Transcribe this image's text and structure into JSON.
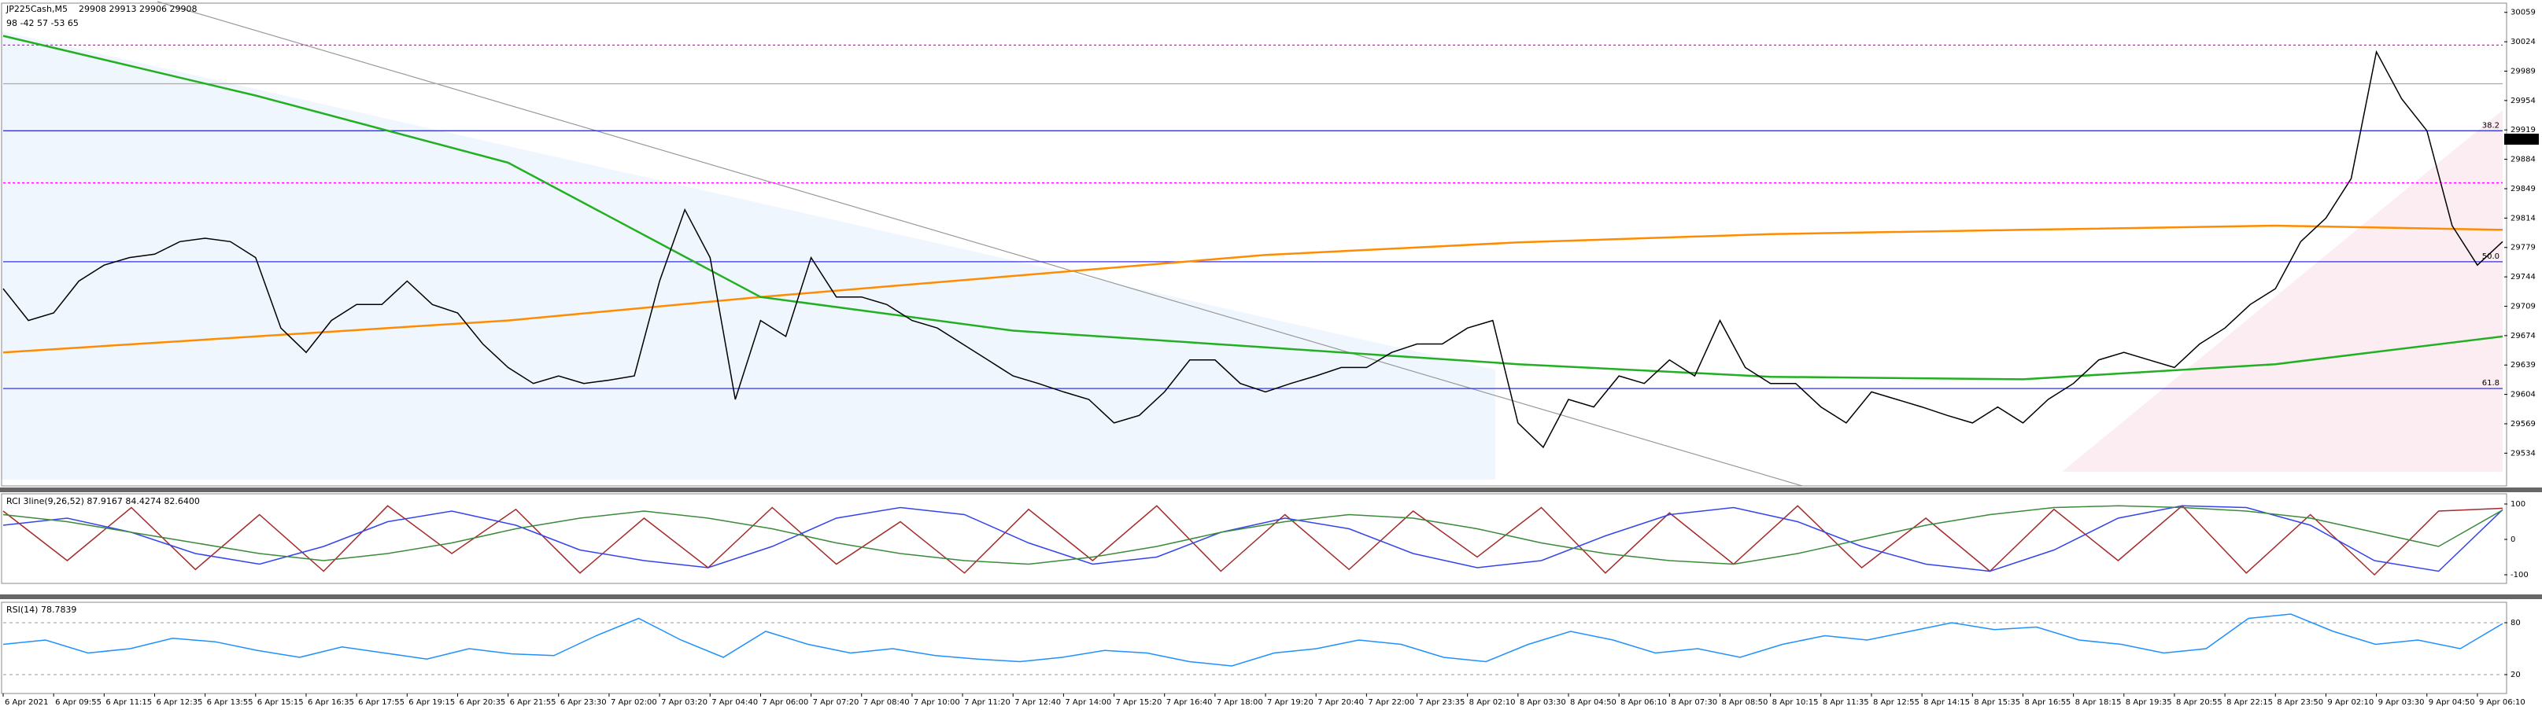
{
  "chart_data": [
    {
      "type": "line",
      "title": "JP225Cash,M5",
      "subtitle": "29908 29913 29906 29908",
      "annotations": [
        "98 -42 57 -53 65"
      ],
      "categories": [
        "6 Apr 2021",
        null,
        "6 Apr 09:55",
        null,
        "6 Apr 11:15",
        null,
        "6 Apr 12:35",
        null,
        "6 Apr 13:55",
        null,
        "6 Apr 15:15",
        null,
        "6 Apr 16:35",
        null,
        "6 Apr 17:55",
        null,
        "6 Apr 19:15",
        null,
        "6 Apr 20:35",
        null,
        "6 Apr 21:55",
        null,
        "6 Apr 23:30",
        null,
        "7 Apr 02:00",
        null,
        "7 Apr 03:20",
        null,
        "7 Apr 04:40",
        null,
        "7 Apr 06:00",
        null,
        "7 Apr 07:20",
        null,
        "7 Apr 08:40",
        null,
        "7 Apr 10:00",
        null,
        "7 Apr 11:20",
        null,
        "7 Apr 12:40",
        null,
        "7 Apr 14:00",
        null,
        "7 Apr 15:20",
        null,
        "7 Apr 16:40",
        null,
        "7 Apr 18:00",
        null,
        "7 Apr 19:20",
        null,
        "7 Apr 20:40",
        null,
        "7 Apr 22:00",
        null,
        "7 Apr 23:35",
        null,
        "8 Apr 02:10",
        null,
        "8 Apr 03:30",
        null,
        "8 Apr 04:50",
        null,
        "8 Apr 06:10",
        null,
        "8 Apr 07:30",
        null,
        "8 Apr 08:50",
        null,
        "8 Apr 10:15",
        null,
        "8 Apr 11:35",
        null,
        "8 Apr 12:55",
        null,
        "8 Apr 14:15",
        null,
        "8 Apr 15:35",
        null,
        "8 Apr 16:55",
        null,
        "8 Apr 18:15",
        null,
        "8 Apr 19:35",
        null,
        "8 Apr 20:55",
        null,
        "8 Apr 22:15",
        null,
        "8 Apr 23:50",
        null,
        "9 Apr 02:10",
        null,
        "9 Apr 03:30",
        null,
        "9 Apr 04:50",
        null,
        "9 Apr 06:10",
        null
      ],
      "series": [
        {
          "color": "#000000",
          "values": [
            29730,
            29692,
            29701,
            29739,
            29758,
            29767,
            29771,
            29786,
            29790,
            29786,
            29767,
            29683,
            29654,
            29692,
            29711,
            29711,
            29739,
            29711,
            29701,
            29664,
            29636,
            29617,
            29626,
            29617,
            29621,
            29626,
            29739,
            29824,
            29767,
            29598,
            29692,
            29673,
            29767,
            29720,
            29720,
            29711,
            29692,
            29683,
            29664,
            29645,
            29626,
            29617,
            29607,
            29598,
            29570,
            29579,
            29607,
            29645,
            29645,
            29617,
            29607,
            29617,
            29626,
            29636,
            29636,
            29654,
            29664,
            29664,
            29683,
            29692,
            29570,
            29541,
            29598,
            29589,
            29626,
            29617,
            29645,
            29626,
            29692,
            29636,
            29617,
            29617,
            29589,
            29570,
            29607,
            29598,
            29589,
            29579,
            29570,
            29589,
            29570,
            29598,
            29617,
            29645,
            29654,
            29645,
            29636,
            29664,
            29683,
            29711,
            29730,
            29786,
            29814,
            29861,
            30012,
            29956,
            29918,
            29805,
            29758,
            29786
          ]
        }
      ],
      "overlays": [
        {
          "color": "#ff8c00",
          "x": [
            0,
            10,
            20,
            30,
            40,
            50,
            60,
            70,
            80,
            90,
            99
          ],
          "values": [
            29654,
            29673,
            29692,
            29720,
            29745,
            29770,
            29785,
            29795,
            29800,
            29805,
            29800
          ]
        },
        {
          "color": "#22b022",
          "x": [
            0,
            10,
            20,
            30,
            40,
            50,
            60,
            70,
            80,
            90,
            99
          ],
          "values": [
            30031,
            29960,
            29880,
            29720,
            29680,
            29660,
            29640,
            29625,
            29622,
            29640,
            29673
          ]
        }
      ],
      "levels": [
        {
          "value": 30020,
          "color": "#ff00ff",
          "dash": true
        },
        {
          "value": 29974,
          "color": "#aaaaaa",
          "dash": false
        },
        {
          "value": 29918,
          "color": "#3333dd",
          "dash": false,
          "label": "38.2"
        },
        {
          "value": 29856,
          "color": "#ff00ff",
          "dash": true
        },
        {
          "value": 29762,
          "color": "#3333dd",
          "dash": false,
          "label": "50.0"
        },
        {
          "value": 29611,
          "color": "#3333dd",
          "dash": false,
          "label": "61.8"
        }
      ],
      "last_price": 29908,
      "ylim": [
        29495,
        30070
      ],
      "yticks": [
        29534,
        29569,
        29604,
        29639,
        29674,
        29709,
        29744,
        29779,
        29814,
        29849,
        29884,
        29919,
        29954,
        29989,
        30024,
        30059
      ]
    },
    {
      "type": "line",
      "title": "RCI 3line(9,26,52) 87.9167 84.4274 82.6400",
      "series": [
        {
          "color": "#a52a2a",
          "values": [
            80,
            -60,
            90,
            -85,
            70,
            -90,
            95,
            -40,
            85,
            -95,
            60,
            -80,
            90,
            -70,
            50,
            -95,
            85,
            -60,
            95,
            -90,
            70,
            -85,
            80,
            -50,
            90,
            -95,
            75,
            -70,
            95,
            -80,
            60,
            -90,
            85,
            -60,
            95,
            -95,
            70,
            -100,
            80,
            88
          ]
        },
        {
          "color": "#3344ee",
          "values": [
            40,
            60,
            20,
            -40,
            -70,
            -20,
            50,
            80,
            40,
            -30,
            -60,
            -80,
            -20,
            60,
            90,
            70,
            -10,
            -70,
            -50,
            20,
            60,
            30,
            -40,
            -80,
            -60,
            10,
            70,
            90,
            50,
            -20,
            -70,
            -90,
            -30,
            60,
            95,
            90,
            40,
            -60,
            -90,
            84
          ]
        },
        {
          "color": "#3a8a3a",
          "values": [
            70,
            50,
            20,
            -10,
            -40,
            -60,
            -40,
            -10,
            30,
            60,
            80,
            60,
            30,
            -10,
            -40,
            -60,
            -70,
            -50,
            -20,
            20,
            50,
            70,
            60,
            30,
            -10,
            -40,
            -60,
            -70,
            -40,
            0,
            40,
            70,
            90,
            95,
            90,
            80,
            60,
            20,
            -20,
            83
          ]
        }
      ],
      "ylim": [
        -120,
        120
      ],
      "yticks": [
        -100,
        0,
        100
      ],
      "grid": false
    },
    {
      "type": "line",
      "title": "RSI(14) 78.7839",
      "series": [
        {
          "color": "#1e90ff",
          "values": [
            55,
            60,
            45,
            50,
            62,
            58,
            48,
            40,
            52,
            45,
            38,
            50,
            44,
            42,
            65,
            85,
            60,
            40,
            70,
            55,
            45,
            50,
            42,
            38,
            35,
            40,
            48,
            45,
            35,
            30,
            45,
            50,
            60,
            55,
            40,
            35,
            55,
            70,
            60,
            45,
            50,
            40,
            55,
            65,
            60,
            70,
            80,
            72,
            75,
            60,
            55,
            45,
            50,
            85,
            90,
            70,
            55,
            60,
            50,
            79
          ]
        }
      ],
      "ylim": [
        0,
        100
      ],
      "yticks": [
        20,
        80
      ],
      "grid": true
    }
  ]
}
